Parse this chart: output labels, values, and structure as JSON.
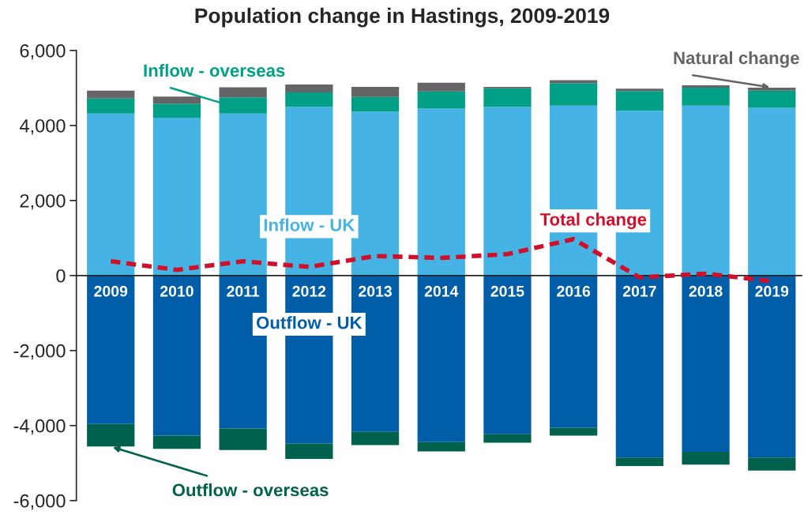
{
  "chart_data": {
    "type": "bar",
    "stacked": true,
    "title": "Population change in Hastings, 2009-2019",
    "categories": [
      "2009",
      "2010",
      "2011",
      "2012",
      "2013",
      "2014",
      "2015",
      "2016",
      "2017",
      "2018",
      "2019"
    ],
    "series": [
      {
        "name": "Inflow - UK",
        "color": "#45b3e3",
        "values": [
          4320,
          4210,
          4320,
          4500,
          4370,
          4450,
          4500,
          4530,
          4390,
          4530,
          4470
        ]
      },
      {
        "name": "Inflow - overseas",
        "color": "#00a086",
        "values": [
          400,
          370,
          430,
          380,
          390,
          460,
          490,
          600,
          530,
          480,
          460
        ]
      },
      {
        "name": "Natural change",
        "color": "#666466",
        "values": [
          210,
          190,
          270,
          210,
          270,
          230,
          40,
          80,
          60,
          60,
          80
        ]
      },
      {
        "name": "Outflow - UK",
        "color": "#005ea8",
        "values": [
          -3960,
          -4270,
          -4080,
          -4480,
          -4170,
          -4440,
          -4230,
          -4060,
          -4850,
          -4700,
          -4850
        ]
      },
      {
        "name": "Outflow - overseas",
        "color": "#00614c",
        "values": [
          -600,
          -350,
          -570,
          -410,
          -350,
          -250,
          -230,
          -210,
          -230,
          -340,
          -350
        ]
      },
      {
        "name": "Total change",
        "type": "line",
        "line_style": "dashed",
        "color": "#d0102a",
        "values": [
          380,
          150,
          380,
          230,
          520,
          470,
          570,
          970,
          -50,
          50,
          -150
        ]
      }
    ],
    "ylim": [
      -6000,
      6000
    ],
    "yticks": [
      {
        "value": -6000,
        "label": "-6,000"
      },
      {
        "value": -4000,
        "label": "-4,000"
      },
      {
        "value": -2000,
        "label": "-2,000"
      },
      0,
      {
        "value": 2000,
        "label": "2,000"
      },
      {
        "value": 4000,
        "label": "4,000"
      },
      {
        "value": 6000,
        "label": "6,000"
      }
    ],
    "grid": false,
    "legend": false
  }
}
